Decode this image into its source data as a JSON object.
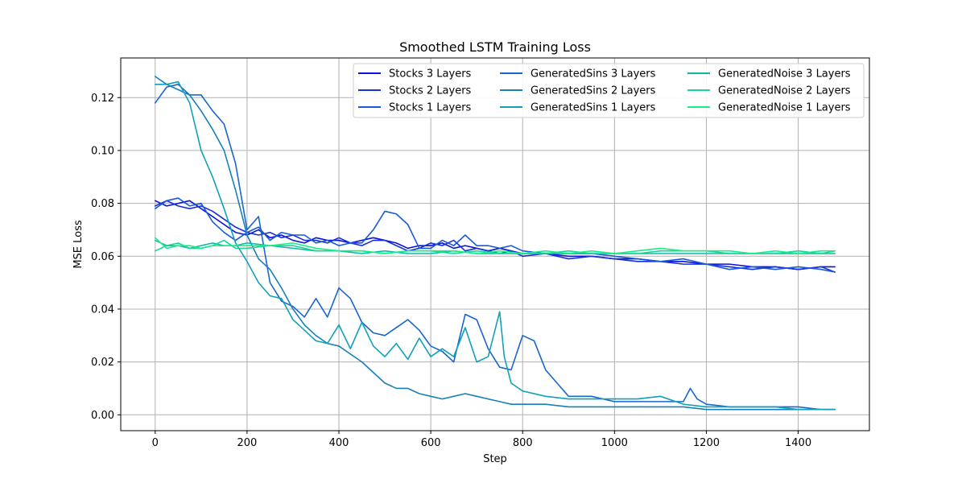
{
  "chart_data": {
    "type": "line",
    "title": "Smoothed LSTM Training Loss",
    "xlabel": "Step",
    "ylabel": "MSE Loss",
    "xlim": [
      -75,
      1555
    ],
    "ylim": [
      -0.006,
      0.135
    ],
    "xticks": [
      0,
      200,
      400,
      600,
      800,
      1000,
      1200,
      1400
    ],
    "yticks": [
      0.0,
      0.02,
      0.04,
      0.06,
      0.08,
      0.1,
      0.12
    ],
    "grid": true,
    "legend": {
      "placement": "top-right",
      "columns": 3
    },
    "series": [
      {
        "name": "Stocks 3 Layers",
        "color": "#0a10e0",
        "x": [
          0,
          25,
          50,
          75,
          100,
          125,
          150,
          175,
          200,
          225,
          250,
          275,
          300,
          325,
          350,
          375,
          400,
          425,
          450,
          475,
          500,
          525,
          550,
          575,
          600,
          625,
          650,
          675,
          700,
          725,
          750,
          775,
          800,
          850,
          900,
          950,
          1000,
          1050,
          1100,
          1150,
          1200,
          1250,
          1300,
          1350,
          1400,
          1450,
          1480
        ],
        "y": [
          0.081,
          0.079,
          0.08,
          0.081,
          0.078,
          0.075,
          0.072,
          0.069,
          0.068,
          0.07,
          0.067,
          0.068,
          0.066,
          0.065,
          0.067,
          0.066,
          0.066,
          0.065,
          0.066,
          0.067,
          0.066,
          0.065,
          0.063,
          0.064,
          0.064,
          0.065,
          0.063,
          0.064,
          0.063,
          0.062,
          0.063,
          0.062,
          0.061,
          0.061,
          0.06,
          0.06,
          0.059,
          0.059,
          0.058,
          0.058,
          0.057,
          0.057,
          0.056,
          0.056,
          0.055,
          0.056,
          0.056
        ]
      },
      {
        "name": "Stocks 2 Layers",
        "color": "#1730d8",
        "x": [
          0,
          25,
          50,
          75,
          100,
          125,
          150,
          175,
          200,
          225,
          250,
          275,
          300,
          325,
          350,
          375,
          400,
          425,
          450,
          475,
          500,
          525,
          550,
          575,
          600,
          625,
          650,
          675,
          700,
          725,
          750,
          775,
          800,
          850,
          900,
          950,
          1000,
          1050,
          1100,
          1150,
          1200,
          1250,
          1300,
          1350,
          1400,
          1450,
          1480
        ],
        "y": [
          0.079,
          0.081,
          0.079,
          0.078,
          0.079,
          0.077,
          0.074,
          0.071,
          0.069,
          0.068,
          0.069,
          0.067,
          0.068,
          0.066,
          0.066,
          0.065,
          0.067,
          0.065,
          0.064,
          0.066,
          0.066,
          0.064,
          0.062,
          0.063,
          0.065,
          0.064,
          0.066,
          0.062,
          0.063,
          0.062,
          0.061,
          0.062,
          0.06,
          0.061,
          0.059,
          0.06,
          0.059,
          0.058,
          0.058,
          0.057,
          0.057,
          0.056,
          0.055,
          0.056,
          0.055,
          0.056,
          0.054
        ]
      },
      {
        "name": "Stocks 1 Layers",
        "color": "#1a5ad8",
        "x": [
          0,
          25,
          50,
          75,
          100,
          125,
          150,
          175,
          200,
          225,
          250,
          275,
          300,
          325,
          350,
          375,
          400,
          425,
          450,
          475,
          500,
          525,
          550,
          575,
          600,
          625,
          650,
          675,
          700,
          725,
          750,
          775,
          800,
          850,
          900,
          950,
          1000,
          1050,
          1100,
          1150,
          1200,
          1250,
          1300,
          1350,
          1400,
          1450,
          1480
        ],
        "y": [
          0.078,
          0.081,
          0.082,
          0.079,
          0.08,
          0.073,
          0.069,
          0.066,
          0.069,
          0.071,
          0.066,
          0.069,
          0.068,
          0.068,
          0.065,
          0.066,
          0.064,
          0.065,
          0.065,
          0.07,
          0.077,
          0.076,
          0.072,
          0.063,
          0.063,
          0.066,
          0.064,
          0.068,
          0.064,
          0.064,
          0.063,
          0.064,
          0.062,
          0.061,
          0.061,
          0.061,
          0.06,
          0.059,
          0.058,
          0.059,
          0.057,
          0.055,
          0.056,
          0.055,
          0.056,
          0.055,
          0.054
        ]
      },
      {
        "name": "GeneratedSins 3 Layers",
        "color": "#1a66cc",
        "x": [
          0,
          25,
          50,
          75,
          100,
          125,
          150,
          175,
          200,
          225,
          250,
          275,
          300,
          325,
          350,
          375,
          400,
          425,
          450,
          475,
          500,
          525,
          550,
          575,
          600,
          625,
          650,
          675,
          700,
          725,
          750,
          775,
          800,
          825,
          850,
          875,
          900,
          950,
          1000,
          1050,
          1100,
          1150,
          1165,
          1180,
          1200,
          1250,
          1300,
          1350,
          1400,
          1450,
          1480
        ],
        "y": [
          0.118,
          0.124,
          0.125,
          0.121,
          0.121,
          0.115,
          0.11,
          0.095,
          0.07,
          0.075,
          0.05,
          0.043,
          0.041,
          0.037,
          0.044,
          0.037,
          0.048,
          0.044,
          0.035,
          0.031,
          0.03,
          0.033,
          0.036,
          0.032,
          0.026,
          0.024,
          0.02,
          0.038,
          0.036,
          0.025,
          0.018,
          0.017,
          0.03,
          0.028,
          0.017,
          0.012,
          0.007,
          0.007,
          0.005,
          0.005,
          0.005,
          0.005,
          0.01,
          0.006,
          0.004,
          0.003,
          0.003,
          0.003,
          0.003,
          0.002,
          0.002
        ]
      },
      {
        "name": "GeneratedSins 2 Layers",
        "color": "#1680b8",
        "x": [
          0,
          25,
          50,
          75,
          100,
          125,
          150,
          175,
          200,
          225,
          250,
          275,
          300,
          325,
          350,
          375,
          400,
          425,
          450,
          475,
          500,
          525,
          550,
          575,
          600,
          625,
          650,
          675,
          700,
          725,
          750,
          775,
          800,
          850,
          900,
          950,
          1000,
          1050,
          1100,
          1150,
          1200,
          1250,
          1300,
          1350,
          1400,
          1450,
          1480
        ],
        "y": [
          0.128,
          0.125,
          0.123,
          0.121,
          0.115,
          0.108,
          0.1,
          0.085,
          0.068,
          0.059,
          0.055,
          0.048,
          0.04,
          0.034,
          0.03,
          0.027,
          0.026,
          0.023,
          0.02,
          0.016,
          0.012,
          0.01,
          0.01,
          0.008,
          0.007,
          0.006,
          0.007,
          0.008,
          0.007,
          0.006,
          0.005,
          0.004,
          0.004,
          0.004,
          0.003,
          0.003,
          0.003,
          0.003,
          0.003,
          0.003,
          0.002,
          0.002,
          0.002,
          0.002,
          0.002,
          0.002,
          0.002
        ]
      },
      {
        "name": "GeneratedSins 1 Layers",
        "color": "#10a0b8",
        "x": [
          0,
          25,
          50,
          75,
          100,
          125,
          150,
          175,
          200,
          225,
          250,
          275,
          300,
          325,
          350,
          375,
          400,
          425,
          450,
          475,
          500,
          525,
          550,
          575,
          600,
          625,
          650,
          675,
          700,
          725,
          750,
          760,
          775,
          800,
          850,
          900,
          950,
          1000,
          1050,
          1100,
          1150,
          1200,
          1250,
          1300,
          1350,
          1400,
          1450,
          1480
        ],
        "y": [
          0.125,
          0.125,
          0.126,
          0.118,
          0.1,
          0.09,
          0.078,
          0.065,
          0.058,
          0.05,
          0.045,
          0.044,
          0.036,
          0.032,
          0.028,
          0.027,
          0.034,
          0.025,
          0.035,
          0.026,
          0.022,
          0.027,
          0.021,
          0.029,
          0.022,
          0.025,
          0.022,
          0.033,
          0.02,
          0.022,
          0.039,
          0.022,
          0.012,
          0.009,
          0.007,
          0.006,
          0.006,
          0.006,
          0.006,
          0.007,
          0.004,
          0.003,
          0.003,
          0.003,
          0.003,
          0.002,
          0.002,
          0.002
        ]
      },
      {
        "name": "GeneratedNoise 3 Layers",
        "color": "#12b8a6",
        "x": [
          0,
          25,
          50,
          75,
          100,
          125,
          150,
          175,
          200,
          250,
          300,
          350,
          400,
          450,
          500,
          550,
          600,
          650,
          700,
          750,
          800,
          850,
          900,
          950,
          1000,
          1050,
          1100,
          1150,
          1200,
          1250,
          1300,
          1350,
          1400,
          1450,
          1480
        ],
        "y": [
          0.066,
          0.064,
          0.064,
          0.063,
          0.064,
          0.065,
          0.064,
          0.064,
          0.065,
          0.064,
          0.063,
          0.062,
          0.062,
          0.061,
          0.062,
          0.061,
          0.061,
          0.062,
          0.061,
          0.061,
          0.061,
          0.061,
          0.061,
          0.061,
          0.061,
          0.061,
          0.061,
          0.061,
          0.061,
          0.061,
          0.061,
          0.061,
          0.061,
          0.061,
          0.061
        ]
      },
      {
        "name": "GeneratedNoise 2 Layers",
        "color": "#1ad49a",
        "x": [
          0,
          25,
          50,
          75,
          100,
          125,
          150,
          175,
          200,
          250,
          300,
          350,
          400,
          450,
          500,
          550,
          600,
          650,
          700,
          750,
          800,
          850,
          900,
          950,
          1000,
          1050,
          1100,
          1150,
          1200,
          1250,
          1300,
          1350,
          1400,
          1450,
          1480
        ],
        "y": [
          0.062,
          0.064,
          0.065,
          0.063,
          0.063,
          0.064,
          0.066,
          0.063,
          0.063,
          0.064,
          0.064,
          0.062,
          0.062,
          0.062,
          0.061,
          0.062,
          0.062,
          0.061,
          0.062,
          0.061,
          0.061,
          0.061,
          0.062,
          0.061,
          0.061,
          0.061,
          0.062,
          0.062,
          0.062,
          0.061,
          0.061,
          0.061,
          0.062,
          0.061,
          0.062
        ]
      },
      {
        "name": "GeneratedNoise 1 Layers",
        "color": "#18ee82",
        "x": [
          0,
          25,
          50,
          75,
          100,
          125,
          150,
          175,
          200,
          250,
          300,
          350,
          400,
          450,
          500,
          550,
          600,
          650,
          700,
          750,
          800,
          850,
          900,
          950,
          1000,
          1050,
          1100,
          1150,
          1200,
          1250,
          1300,
          1350,
          1400,
          1450,
          1480
        ],
        "y": [
          0.067,
          0.063,
          0.064,
          0.064,
          0.063,
          0.064,
          0.064,
          0.064,
          0.064,
          0.064,
          0.065,
          0.063,
          0.062,
          0.062,
          0.061,
          0.062,
          0.062,
          0.062,
          0.061,
          0.062,
          0.061,
          0.062,
          0.061,
          0.062,
          0.061,
          0.062,
          0.063,
          0.062,
          0.062,
          0.062,
          0.061,
          0.062,
          0.061,
          0.062,
          0.062
        ]
      }
    ]
  }
}
